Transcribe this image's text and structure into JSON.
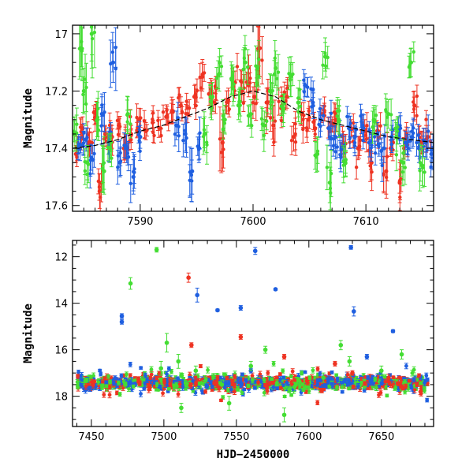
{
  "chart_data": [
    {
      "type": "scatter",
      "title": "",
      "xlabel": "",
      "ylabel": "Magnitude",
      "xlim": [
        7584,
        7616
      ],
      "ylim": [
        17.62,
        16.97
      ],
      "y_inverted": true,
      "grid": false,
      "x_ticks": [
        7590,
        7600,
        7610
      ],
      "y_ticks": [
        17,
        17.2,
        17.4,
        17.6
      ],
      "model_curve": {
        "x": [
          7584,
          7586,
          7588,
          7590,
          7592,
          7594,
          7596,
          7598,
          7600,
          7602,
          7604,
          7606,
          7608,
          7610,
          7612,
          7614,
          7616
        ],
        "y": [
          17.4,
          17.39,
          17.37,
          17.34,
          17.32,
          17.29,
          17.26,
          17.22,
          17.2,
          17.22,
          17.27,
          17.3,
          17.32,
          17.34,
          17.36,
          17.37,
          17.38
        ]
      },
      "series": [
        {
          "color": "#ee3322",
          "points": [
            [
              7584.3,
              17.42,
              0.03
            ],
            [
              7584.9,
              17.33,
              0.04
            ],
            [
              7585.5,
              17.38,
              0.05
            ],
            [
              7586.0,
              17.3,
              0.04
            ],
            [
              7586.4,
              17.55,
              0.06
            ],
            [
              7586.9,
              17.35,
              0.03
            ],
            [
              7587.5,
              17.36,
              0.04
            ],
            [
              7588.1,
              17.32,
              0.03
            ],
            [
              7588.6,
              17.4,
              0.05
            ],
            [
              7589.2,
              17.35,
              0.03
            ],
            [
              7589.9,
              17.3,
              0.04
            ],
            [
              7590.5,
              17.34,
              0.03
            ],
            [
              7591.1,
              17.31,
              0.03
            ],
            [
              7591.8,
              17.33,
              0.03
            ],
            [
              7592.3,
              17.29,
              0.03
            ],
            [
              7592.9,
              17.27,
              0.04
            ],
            [
              7593.6,
              17.25,
              0.03
            ],
            [
              7594.2,
              17.28,
              0.03
            ],
            [
              7594.8,
              17.22,
              0.04
            ],
            [
              7595.5,
              17.15,
              0.05
            ],
            [
              7596.1,
              17.21,
              0.04
            ],
            [
              7596.7,
              17.19,
              0.04
            ],
            [
              7597.3,
              17.38,
              0.1
            ],
            [
              7597.8,
              17.23,
              0.04
            ],
            [
              7598.4,
              17.17,
              0.04
            ],
            [
              7599.0,
              17.2,
              0.04
            ],
            [
              7599.6,
              17.18,
              0.04
            ],
            [
              7600.1,
              17.22,
              0.05
            ],
            [
              7600.6,
              17.05,
              0.1
            ],
            [
              7601.2,
              17.24,
              0.05
            ],
            [
              7601.8,
              17.32,
              0.07
            ],
            [
              7602.5,
              17.26,
              0.04
            ],
            [
              7603.0,
              17.22,
              0.04
            ],
            [
              7603.6,
              17.36,
              0.05
            ],
            [
              7604.3,
              17.28,
              0.04
            ],
            [
              7604.9,
              17.3,
              0.04
            ],
            [
              7605.5,
              17.33,
              0.03
            ],
            [
              7606.1,
              17.28,
              0.03
            ],
            [
              7606.8,
              17.34,
              0.03
            ],
            [
              7607.4,
              17.3,
              0.04
            ],
            [
              7608.0,
              17.38,
              0.04
            ],
            [
              7608.7,
              17.33,
              0.03
            ],
            [
              7609.3,
              17.4,
              0.04
            ],
            [
              7609.9,
              17.34,
              0.04
            ],
            [
              7610.5,
              17.45,
              0.06
            ],
            [
              7611.1,
              17.36,
              0.04
            ],
            [
              7611.8,
              17.48,
              0.08
            ],
            [
              7612.4,
              17.38,
              0.04
            ],
            [
              7613.0,
              17.52,
              0.07
            ],
            [
              7613.6,
              17.35,
              0.04
            ],
            [
              7614.3,
              17.25,
              0.05
            ],
            [
              7614.9,
              17.38,
              0.04
            ],
            [
              7615.5,
              17.36,
              0.04
            ]
          ]
        },
        {
          "color": "#1f5fe0",
          "points": [
            [
              7584.5,
              17.4,
              0.04
            ],
            [
              7585.2,
              17.37,
              0.04
            ],
            [
              7585.8,
              17.44,
              0.05
            ],
            [
              7586.6,
              17.28,
              0.06
            ],
            [
              7587.2,
              17.38,
              0.04
            ],
            [
              7587.6,
              17.1,
              0.07
            ],
            [
              7588.2,
              17.45,
              0.05
            ],
            [
              7588.8,
              17.4,
              0.05
            ],
            [
              7589.4,
              17.5,
              0.06
            ],
            [
              7590.0,
              17.36,
              0.04
            ],
            [
              7593.2,
              17.32,
              0.05
            ],
            [
              7594.0,
              17.35,
              0.06
            ],
            [
              7594.6,
              17.48,
              0.08
            ],
            [
              7595.2,
              17.4,
              0.05
            ],
            [
              7604.6,
              17.18,
              0.04
            ],
            [
              7605.3,
              17.24,
              0.04
            ],
            [
              7606.0,
              17.3,
              0.04
            ],
            [
              7606.7,
              17.33,
              0.04
            ],
            [
              7607.3,
              17.36,
              0.04
            ],
            [
              7607.9,
              17.4,
              0.05
            ],
            [
              7608.5,
              17.33,
              0.04
            ],
            [
              7609.0,
              17.36,
              0.04
            ],
            [
              7609.7,
              17.32,
              0.04
            ],
            [
              7610.3,
              17.38,
              0.05
            ],
            [
              7611.0,
              17.35,
              0.04
            ],
            [
              7611.6,
              17.4,
              0.05
            ],
            [
              7612.3,
              17.36,
              0.04
            ],
            [
              7612.9,
              17.33,
              0.04
            ],
            [
              7613.5,
              17.38,
              0.04
            ],
            [
              7614.1,
              17.36,
              0.04
            ],
            [
              7614.7,
              17.4,
              0.05
            ],
            [
              7615.3,
              17.38,
              0.05
            ],
            [
              7615.8,
              17.42,
              0.05
            ]
          ]
        },
        {
          "color": "#44dd33",
          "points": [
            [
              7584.2,
              17.35,
              0.06
            ],
            [
              7584.7,
              17.05,
              0.1
            ],
            [
              7585.0,
              17.2,
              0.08
            ],
            [
              7585.3,
              17.45,
              0.06
            ],
            [
              7585.7,
              17.0,
              0.12
            ],
            [
              7586.2,
              17.3,
              0.06
            ],
            [
              7586.8,
              17.48,
              0.08
            ],
            [
              7587.3,
              17.4,
              0.05
            ],
            [
              7588.9,
              17.28,
              0.06
            ],
            [
              7595.7,
              17.35,
              0.06
            ],
            [
              7596.4,
              17.22,
              0.05
            ],
            [
              7597.0,
              17.14,
              0.06
            ],
            [
              7597.5,
              17.3,
              0.05
            ],
            [
              7598.1,
              17.16,
              0.05
            ],
            [
              7598.7,
              17.25,
              0.05
            ],
            [
              7599.3,
              17.1,
              0.06
            ],
            [
              7599.8,
              17.28,
              0.05
            ],
            [
              7600.4,
              17.12,
              0.06
            ],
            [
              7601.0,
              17.32,
              0.05
            ],
            [
              7601.5,
              17.2,
              0.06
            ],
            [
              7602.0,
              17.12,
              0.06
            ],
            [
              7602.7,
              17.26,
              0.05
            ],
            [
              7603.3,
              17.16,
              0.06
            ],
            [
              7604.0,
              17.24,
              0.05
            ],
            [
              7605.7,
              17.42,
              0.06
            ],
            [
              7606.4,
              17.08,
              0.05
            ],
            [
              7606.8,
              17.52,
              0.07
            ],
            [
              7607.6,
              17.3,
              0.05
            ],
            [
              7608.2,
              17.44,
              0.06
            ],
            [
              7610.7,
              17.3,
              0.05
            ],
            [
              7612.0,
              17.28,
              0.05
            ],
            [
              7612.7,
              17.36,
              0.05
            ],
            [
              7613.3,
              17.45,
              0.06
            ],
            [
              7614.0,
              17.1,
              0.05
            ],
            [
              7615.0,
              17.46,
              0.07
            ]
          ]
        }
      ]
    },
    {
      "type": "scatter",
      "title": "",
      "xlabel": "HJD−2450000",
      "ylabel": "Magnitude",
      "xlim": [
        7437,
        7686
      ],
      "ylim": [
        19.3,
        11.3
      ],
      "y_inverted": true,
      "grid": false,
      "x_ticks": [
        7450,
        7500,
        7550,
        7600,
        7650
      ],
      "y_ticks": [
        12,
        14,
        16,
        18
      ],
      "baseline": {
        "mean": 17.42,
        "scatter": 0.15,
        "x_range": [
          7440,
          7682
        ]
      },
      "series": [
        {
          "color": "#ee3322",
          "outliers": [
            [
              7517,
              12.9,
              0.2
            ],
            [
              7519,
              15.8,
              0.1
            ],
            [
              7553,
              15.45,
              0.1
            ],
            [
              7583,
              16.3,
              0.1
            ],
            [
              7618,
              16.6,
              0.1
            ],
            [
              7630,
              17.0,
              0.1
            ],
            [
              7655,
              17.2,
              0.15
            ]
          ]
        },
        {
          "color": "#1f5fe0",
          "outliers": [
            [
              7471,
              14.55,
              0.1
            ],
            [
              7471,
              14.8,
              0.1
            ],
            [
              7523,
              13.65,
              0.3
            ],
            [
              7537,
              14.3,
              0.05
            ],
            [
              7553,
              14.2,
              0.1
            ],
            [
              7563,
              11.75,
              0.15
            ],
            [
              7577,
              13.4,
              0.05
            ],
            [
              7629,
              11.6,
              0.08
            ],
            [
              7631,
              14.35,
              0.2
            ],
            [
              7658,
              15.2,
              0.06
            ],
            [
              7640,
              16.3,
              0.1
            ],
            [
              7560,
              16.9,
              0.1
            ]
          ]
        },
        {
          "color": "#44dd33",
          "outliers": [
            [
              7477,
              13.15,
              0.25
            ],
            [
              7495,
              11.7,
              0.1
            ],
            [
              7498,
              16.8,
              0.3
            ],
            [
              7502,
              15.7,
              0.4
            ],
            [
              7510,
              16.5,
              0.3
            ],
            [
              7512,
              18.5,
              0.2
            ],
            [
              7522,
              16.9,
              0.2
            ],
            [
              7540,
              17.5,
              0.2
            ],
            [
              7545,
              18.3,
              0.3
            ],
            [
              7560,
              16.7,
              0.2
            ],
            [
              7570,
              16.0,
              0.15
            ],
            [
              7583,
              18.8,
              0.3
            ],
            [
              7590,
              17.6,
              0.2
            ],
            [
              7610,
              17.2,
              0.2
            ],
            [
              7622,
              15.8,
              0.2
            ],
            [
              7628,
              16.5,
              0.2
            ],
            [
              7650,
              16.9,
              0.2
            ],
            [
              7664,
              16.2,
              0.2
            ]
          ]
        }
      ]
    }
  ]
}
